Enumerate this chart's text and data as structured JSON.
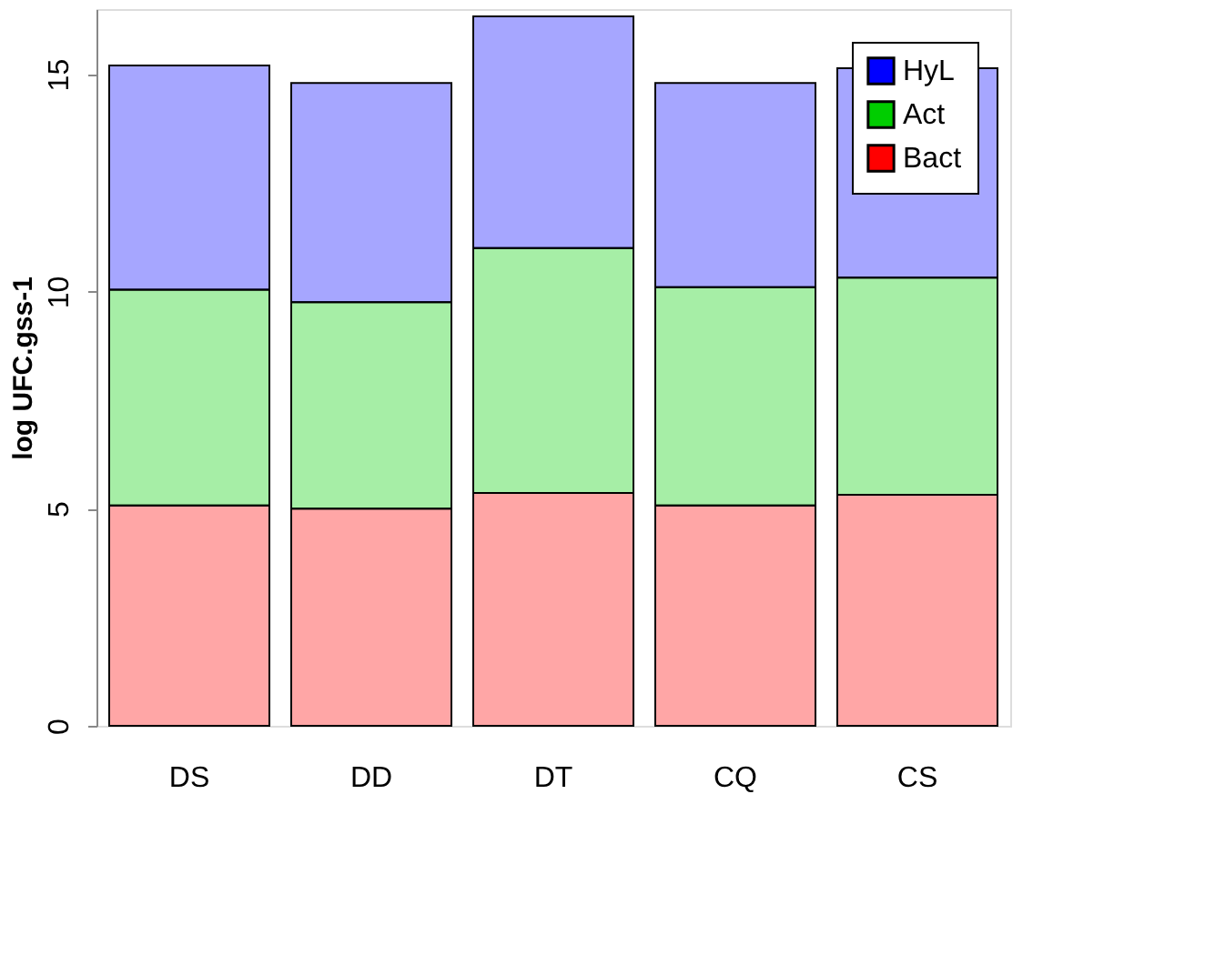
{
  "chart_data": {
    "type": "bar",
    "stacked": true,
    "ylabel": "log UFC.gss-1",
    "categories": [
      "DS",
      "DD",
      "DT",
      "CQ",
      "CS"
    ],
    "series": [
      {
        "name": "Bact",
        "color": "#ff0000",
        "values": [
          5.07,
          5.0,
          5.36,
          5.07,
          5.32
        ]
      },
      {
        "name": "Act",
        "color": "#00cd00",
        "values": [
          4.97,
          4.75,
          5.64,
          5.03,
          5.0
        ]
      },
      {
        "name": "HyL",
        "color": "#0000ff",
        "values": [
          5.16,
          5.05,
          5.33,
          4.7,
          4.82
        ]
      }
    ],
    "ylim": [
      0,
      16.5
    ],
    "yticks": [
      0,
      5,
      10,
      15
    ],
    "grid": false,
    "legend": "top right"
  }
}
